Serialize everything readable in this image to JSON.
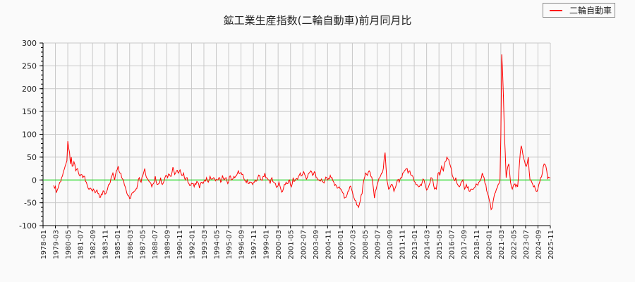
{
  "chart_data": {
    "type": "line",
    "title": "鉱工業生産指数(二輪自動車)前月同月比",
    "xlabel": "",
    "ylabel": "",
    "ylim": [
      -100,
      300
    ],
    "yticks": [
      300,
      250,
      200,
      150,
      100,
      50,
      0,
      -50,
      -100
    ],
    "xlim": [
      "1978-01",
      "2025-11"
    ],
    "xticks": [
      "1978-01",
      "1979-03",
      "1980-05",
      "1981-07",
      "1982-09",
      "1983-11",
      "1985-01",
      "1986-03",
      "1987-05",
      "1988-07",
      "1989-09",
      "1990-11",
      "1992-01",
      "1993-03",
      "1994-05",
      "1995-07",
      "1996-09",
      "1997-11",
      "1999-01",
      "2000-03",
      "2001-05",
      "2002-07",
      "2003-09",
      "2004-11",
      "2006-01",
      "2007-03",
      "2008-05",
      "2009-07",
      "2010-09",
      "2011-11",
      "2013-01",
      "2014-03",
      "2015-05",
      "2016-07",
      "2017-09",
      "2018-11",
      "2020-01",
      "2021-03",
      "2022-05",
      "2023-07",
      "2024-09",
      "2025-11"
    ],
    "grid": true,
    "legend_position": "top-right",
    "reference_line": {
      "y": 0,
      "color": "#00dd00"
    },
    "series": [
      {
        "name": "二輪自動車",
        "color": "#ff0000",
        "start": "1979-01",
        "keypoints": [
          [
            "1979-01",
            -12
          ],
          [
            "1979-02",
            -18
          ],
          [
            "1979-03",
            -14
          ],
          [
            "1979-04",
            -28
          ],
          [
            "1979-06",
            -18
          ],
          [
            "1979-08",
            -5
          ],
          [
            "1979-10",
            5
          ],
          [
            "1979-12",
            18
          ],
          [
            "1980-02",
            30
          ],
          [
            "1980-04",
            42
          ],
          [
            "1980-05",
            85
          ],
          [
            "1980-06",
            70
          ],
          [
            "1980-07",
            60
          ],
          [
            "1980-08",
            35
          ],
          [
            "1980-09",
            50
          ],
          [
            "1980-10",
            30
          ],
          [
            "1980-12",
            40
          ],
          [
            "1981-02",
            20
          ],
          [
            "1981-04",
            25
          ],
          [
            "1981-06",
            10
          ],
          [
            "1981-08",
            12
          ],
          [
            "1981-10",
            5
          ],
          [
            "1981-12",
            8
          ],
          [
            "1982-02",
            -5
          ],
          [
            "1982-04",
            -18
          ],
          [
            "1982-06",
            -18
          ],
          [
            "1982-08",
            -22
          ],
          [
            "1982-10",
            -20
          ],
          [
            "1982-12",
            -28
          ],
          [
            "1983-02",
            -22
          ],
          [
            "1983-04",
            -30
          ],
          [
            "1983-06",
            -38
          ],
          [
            "1983-08",
            -32
          ],
          [
            "1983-10",
            -25
          ],
          [
            "1983-12",
            -30
          ],
          [
            "1984-02",
            -20
          ],
          [
            "1984-04",
            -10
          ],
          [
            "1984-06",
            5
          ],
          [
            "1984-08",
            15
          ],
          [
            "1984-10",
            0
          ],
          [
            "1984-12",
            20
          ],
          [
            "1985-02",
            30
          ],
          [
            "1985-04",
            15
          ],
          [
            "1985-06",
            5
          ],
          [
            "1985-08",
            0
          ],
          [
            "1985-10",
            -15
          ],
          [
            "1985-12",
            -30
          ],
          [
            "1986-02",
            -35
          ],
          [
            "1986-04",
            -40
          ],
          [
            "1986-06",
            -28
          ],
          [
            "1986-08",
            -25
          ],
          [
            "1986-10",
            -20
          ],
          [
            "1986-12",
            -10
          ],
          [
            "1987-02",
            5
          ],
          [
            "1987-04",
            -5
          ],
          [
            "1987-06",
            10
          ],
          [
            "1987-08",
            25
          ],
          [
            "1987-10",
            5
          ],
          [
            "1987-12",
            0
          ],
          [
            "1988-02",
            -5
          ],
          [
            "1988-04",
            -15
          ],
          [
            "1988-06",
            -8
          ],
          [
            "1988-08",
            8
          ],
          [
            "1988-10",
            -10
          ],
          [
            "1988-12",
            -8
          ],
          [
            "1989-02",
            5
          ],
          [
            "1989-04",
            -10
          ],
          [
            "1989-06",
            -2
          ],
          [
            "1989-08",
            10
          ],
          [
            "1989-10",
            5
          ],
          [
            "1989-12",
            12
          ],
          [
            "1990-02",
            8
          ],
          [
            "1990-04",
            28
          ],
          [
            "1990-06",
            12
          ],
          [
            "1990-08",
            20
          ],
          [
            "1990-10",
            15
          ],
          [
            "1990-12",
            22
          ],
          [
            "1991-02",
            10
          ],
          [
            "1991-04",
            15
          ],
          [
            "1991-06",
            0
          ],
          [
            "1991-08",
            5
          ],
          [
            "1991-10",
            -8
          ],
          [
            "1991-12",
            -12
          ],
          [
            "1992-02",
            -8
          ],
          [
            "1992-04",
            -15
          ],
          [
            "1992-06",
            -10
          ],
          [
            "1992-08",
            -5
          ],
          [
            "1992-10",
            -18
          ],
          [
            "1992-12",
            -5
          ],
          [
            "1993-02",
            -8
          ],
          [
            "1993-04",
            0
          ],
          [
            "1993-06",
            5
          ],
          [
            "1993-08",
            -5
          ],
          [
            "1993-10",
            8
          ],
          [
            "1993-12",
            2
          ],
          [
            "1994-02",
            5
          ],
          [
            "1994-04",
            -2
          ],
          [
            "1994-06",
            0
          ],
          [
            "1994-08",
            5
          ],
          [
            "1994-10",
            -5
          ],
          [
            "1994-12",
            10
          ],
          [
            "1995-02",
            0
          ],
          [
            "1995-04",
            5
          ],
          [
            "1995-06",
            -8
          ],
          [
            "1995-08",
            8
          ],
          [
            "1995-10",
            0
          ],
          [
            "1995-12",
            3
          ],
          [
            "1996-02",
            5
          ],
          [
            "1996-04",
            10
          ],
          [
            "1996-06",
            20
          ],
          [
            "1996-08",
            15
          ],
          [
            "1996-10",
            12
          ],
          [
            "1996-12",
            5
          ],
          [
            "1997-02",
            -2
          ],
          [
            "1997-04",
            0
          ],
          [
            "1997-06",
            -8
          ],
          [
            "1997-08",
            -5
          ],
          [
            "1997-10",
            -10
          ],
          [
            "1997-12",
            -5
          ],
          [
            "1998-02",
            -3
          ],
          [
            "1998-04",
            5
          ],
          [
            "1998-06",
            10
          ],
          [
            "1998-08",
            0
          ],
          [
            "1998-10",
            8
          ],
          [
            "1998-12",
            15
          ],
          [
            "1999-02",
            5
          ],
          [
            "1999-04",
            0
          ],
          [
            "1999-06",
            -8
          ],
          [
            "1999-08",
            5
          ],
          [
            "1999-10",
            -5
          ],
          [
            "1999-12",
            -8
          ],
          [
            "2000-02",
            -15
          ],
          [
            "2000-04",
            -5
          ],
          [
            "2000-06",
            -20
          ],
          [
            "2000-08",
            -25
          ],
          [
            "2000-10",
            -10
          ],
          [
            "2000-12",
            -5
          ],
          [
            "2001-02",
            -8
          ],
          [
            "2001-04",
            0
          ],
          [
            "2001-06",
            -15
          ],
          [
            "2001-08",
            5
          ],
          [
            "2001-10",
            -2
          ],
          [
            "2001-12",
            3
          ],
          [
            "2002-02",
            8
          ],
          [
            "2002-04",
            15
          ],
          [
            "2002-06",
            10
          ],
          [
            "2002-08",
            18
          ],
          [
            "2002-10",
            8
          ],
          [
            "2002-12",
            5
          ],
          [
            "2003-02",
            15
          ],
          [
            "2003-04",
            20
          ],
          [
            "2003-06",
            10
          ],
          [
            "2003-08",
            18
          ],
          [
            "2003-10",
            5
          ],
          [
            "2003-12",
            0
          ],
          [
            "2004-02",
            -2
          ],
          [
            "2004-04",
            2
          ],
          [
            "2004-06",
            -5
          ],
          [
            "2004-08",
            0
          ],
          [
            "2004-10",
            5
          ],
          [
            "2004-12",
            3
          ],
          [
            "2005-02",
            10
          ],
          [
            "2005-04",
            5
          ],
          [
            "2005-06",
            -5
          ],
          [
            "2005-08",
            -10
          ],
          [
            "2005-10",
            -18
          ],
          [
            "2005-12",
            -15
          ],
          [
            "2006-02",
            -20
          ],
          [
            "2006-04",
            -28
          ],
          [
            "2006-06",
            -40
          ],
          [
            "2006-08",
            -38
          ],
          [
            "2006-10",
            -25
          ],
          [
            "2006-12",
            -15
          ],
          [
            "2007-02",
            -20
          ],
          [
            "2007-04",
            -35
          ],
          [
            "2007-06",
            -45
          ],
          [
            "2007-08",
            -55
          ],
          [
            "2007-10",
            -60
          ],
          [
            "2007-12",
            -45
          ],
          [
            "2008-02",
            -30
          ],
          [
            "2008-04",
            0
          ],
          [
            "2008-06",
            15
          ],
          [
            "2008-08",
            10
          ],
          [
            "2008-10",
            20
          ],
          [
            "2008-12",
            8
          ],
          [
            "2009-02",
            -5
          ],
          [
            "2009-04",
            -40
          ],
          [
            "2009-06",
            -20
          ],
          [
            "2009-08",
            -5
          ],
          [
            "2009-10",
            5
          ],
          [
            "2009-12",
            15
          ],
          [
            "2010-02",
            25
          ],
          [
            "2010-04",
            60
          ],
          [
            "2010-06",
            0
          ],
          [
            "2010-08",
            -20
          ],
          [
            "2010-10",
            -15
          ],
          [
            "2010-12",
            -10
          ],
          [
            "2011-02",
            -25
          ],
          [
            "2011-04",
            -15
          ],
          [
            "2011-06",
            0
          ],
          [
            "2011-08",
            -5
          ],
          [
            "2011-10",
            5
          ],
          [
            "2011-12",
            15
          ],
          [
            "2012-02",
            20
          ],
          [
            "2012-04",
            25
          ],
          [
            "2012-06",
            15
          ],
          [
            "2012-08",
            20
          ],
          [
            "2012-10",
            10
          ],
          [
            "2012-12",
            5
          ],
          [
            "2013-02",
            -5
          ],
          [
            "2013-04",
            -10
          ],
          [
            "2013-06",
            -15
          ],
          [
            "2013-08",
            -10
          ],
          [
            "2013-10",
            -5
          ],
          [
            "2013-12",
            0
          ],
          [
            "2014-02",
            -15
          ],
          [
            "2014-04",
            -20
          ],
          [
            "2014-06",
            -10
          ],
          [
            "2014-08",
            5
          ],
          [
            "2014-10",
            0
          ],
          [
            "2014-12",
            -20
          ],
          [
            "2015-02",
            -20
          ],
          [
            "2015-04",
            15
          ],
          [
            "2015-06",
            10
          ],
          [
            "2015-08",
            30
          ],
          [
            "2015-10",
            20
          ],
          [
            "2015-12",
            40
          ],
          [
            "2016-02",
            50
          ],
          [
            "2016-04",
            45
          ],
          [
            "2016-06",
            30
          ],
          [
            "2016-08",
            10
          ],
          [
            "2016-10",
            0
          ],
          [
            "2016-12",
            5
          ],
          [
            "2017-02",
            -10
          ],
          [
            "2017-04",
            -15
          ],
          [
            "2017-06",
            -5
          ],
          [
            "2017-08",
            0
          ],
          [
            "2017-10",
            -20
          ],
          [
            "2017-12",
            -10
          ],
          [
            "2018-02",
            -15
          ],
          [
            "2018-04",
            -25
          ],
          [
            "2018-06",
            -20
          ],
          [
            "2018-08",
            -20
          ],
          [
            "2018-10",
            -15
          ],
          [
            "2018-12",
            -10
          ],
          [
            "2019-02",
            -5
          ],
          [
            "2019-04",
            0
          ],
          [
            "2019-06",
            15
          ],
          [
            "2019-08",
            5
          ],
          [
            "2019-10",
            -10
          ],
          [
            "2019-12",
            -30
          ],
          [
            "2020-02",
            -45
          ],
          [
            "2020-04",
            -65
          ],
          [
            "2020-06",
            -50
          ],
          [
            "2020-08",
            -30
          ],
          [
            "2020-10",
            -20
          ],
          [
            "2020-12",
            -10
          ],
          [
            "2021-02",
            0
          ],
          [
            "2021-03",
            100
          ],
          [
            "2021-04",
            275
          ],
          [
            "2021-05",
            235
          ],
          [
            "2021-06",
            180
          ],
          [
            "2021-07",
            100
          ],
          [
            "2021-08",
            60
          ],
          [
            "2021-09",
            5
          ],
          [
            "2021-11",
            30
          ],
          [
            "2021-12",
            35
          ],
          [
            "2022-02",
            -5
          ],
          [
            "2022-04",
            -20
          ],
          [
            "2022-06",
            -10
          ],
          [
            "2022-08",
            -15
          ],
          [
            "2022-10",
            -15
          ],
          [
            "2022-12",
            35
          ],
          [
            "2023-02",
            75
          ],
          [
            "2023-04",
            55
          ],
          [
            "2023-06",
            40
          ],
          [
            "2023-08",
            30
          ],
          [
            "2023-10",
            50
          ],
          [
            "2023-12",
            0
          ],
          [
            "2024-02",
            -5
          ],
          [
            "2024-04",
            -15
          ],
          [
            "2024-06",
            -20
          ],
          [
            "2024-08",
            -25
          ],
          [
            "2024-10",
            -10
          ],
          [
            "2024-12",
            5
          ],
          [
            "2025-02",
            15
          ],
          [
            "2025-04",
            35
          ],
          [
            "2025-06",
            30
          ],
          [
            "2025-08",
            3
          ],
          [
            "2025-10",
            5
          ],
          [
            "2025-11",
            4
          ]
        ]
      }
    ]
  },
  "legend": {
    "items": [
      {
        "label": "二輪自動車",
        "color": "#ff0000"
      }
    ]
  }
}
